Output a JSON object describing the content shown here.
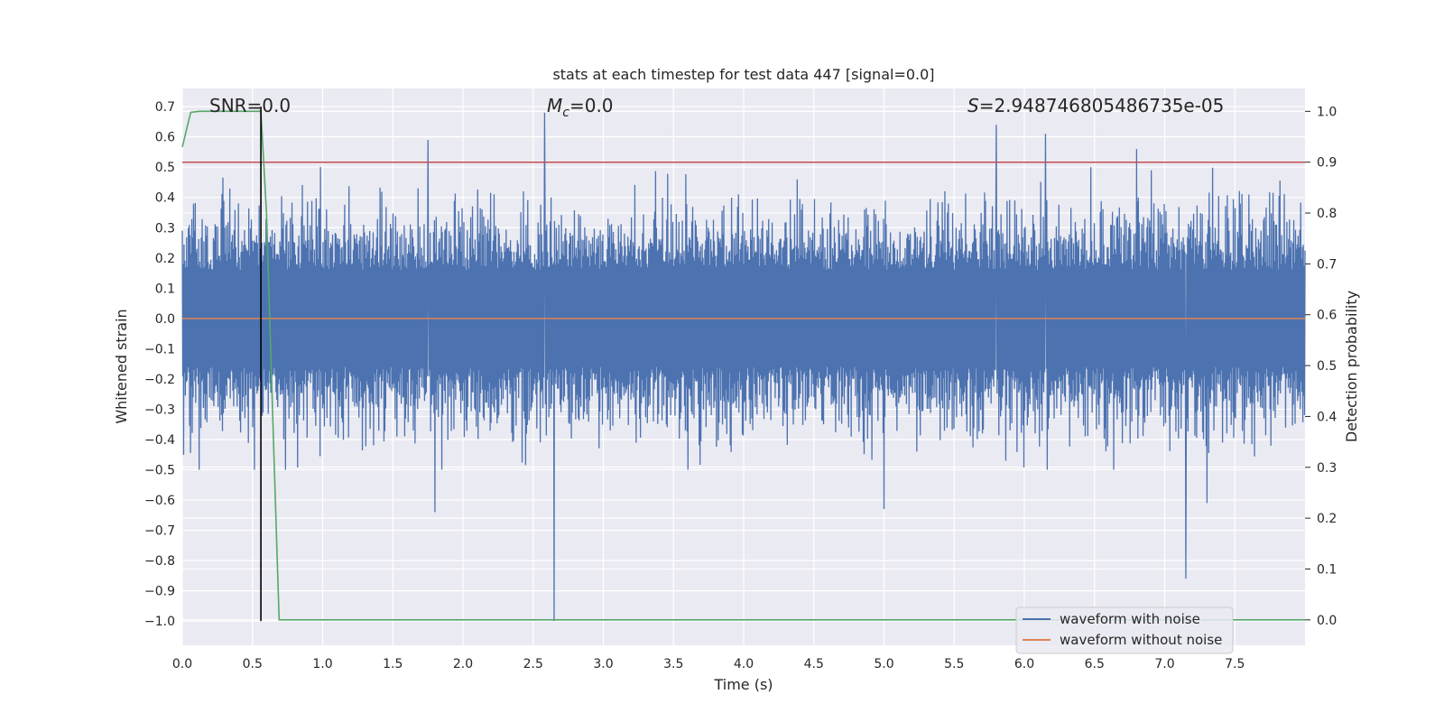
{
  "chart_data": {
    "type": "line",
    "title": "stats at each timestep for test data 447 [signal=0.0]",
    "xlabel": "Time (s)",
    "ylabel_left": "Whitened strain",
    "ylabel_right": "Detection probability",
    "xlim": [
      0.0,
      8.0
    ],
    "ylim_left": [
      -1.08,
      0.76
    ],
    "ylim_right": [
      -0.05,
      1.045
    ],
    "x_ticks": [
      0.0,
      0.5,
      1.0,
      1.5,
      2.0,
      2.5,
      3.0,
      3.5,
      4.0,
      4.5,
      5.0,
      5.5,
      6.0,
      6.5,
      7.0,
      7.5
    ],
    "x_tick_labels": [
      "0.0",
      "0.5",
      "1.0",
      "1.5",
      "2.0",
      "2.5",
      "3.0",
      "3.5",
      "4.0",
      "4.5",
      "5.0",
      "5.5",
      "6.0",
      "6.5",
      "7.0",
      "7.5"
    ],
    "y_left_ticks": [
      0.7,
      0.6,
      0.5,
      0.4,
      0.3,
      0.2,
      0.1,
      0.0,
      -0.1,
      -0.2,
      -0.3,
      -0.4,
      -0.5,
      -0.6,
      -0.7,
      -0.8,
      -0.9,
      -1.0
    ],
    "y_left_tick_labels": [
      "0.7",
      "0.6",
      "0.5",
      "0.4",
      "0.3",
      "0.2",
      "0.1",
      "0.0",
      "−0.1",
      "−0.2",
      "−0.3",
      "−0.4",
      "−0.5",
      "−0.6",
      "−0.7",
      "−0.8",
      "−0.9",
      "−1.0"
    ],
    "y_right_ticks": [
      1.0,
      0.9,
      0.8,
      0.7,
      0.6,
      0.5,
      0.4,
      0.3,
      0.2,
      0.1,
      0.0
    ],
    "y_right_tick_labels": [
      "1.0",
      "0.9",
      "0.8",
      "0.7",
      "0.6",
      "0.5",
      "0.4",
      "0.3",
      "0.2",
      "0.1",
      "0.0"
    ],
    "grid": true,
    "annotations": {
      "snr": "SNR=0.0",
      "mc_symbol": "M",
      "mc_subscript": "c",
      "mc_value": "=0.0",
      "s_symbol": "S",
      "s_value": "=2.948746805486735e-05"
    },
    "legend": {
      "placement": "lower-right",
      "entries": [
        {
          "label": "waveform with noise",
          "color": "#4c72b0"
        },
        {
          "label": "waveform without noise",
          "color": "#dd8452"
        }
      ]
    },
    "noise_waveform": {
      "color": "#4c72b0",
      "x_range": [
        0.0,
        8.0
      ],
      "typical_amplitude": 0.2,
      "peaks": [
        {
          "x": 2.58,
          "y": 0.68
        },
        {
          "x": 5.8,
          "y": 0.64
        },
        {
          "x": 6.15,
          "y": 0.61
        },
        {
          "x": 7.15,
          "y": 0.6
        },
        {
          "x": 6.8,
          "y": 0.56
        },
        {
          "x": 1.75,
          "y": 0.59
        },
        {
          "x": 2.65,
          "y": -1.0
        },
        {
          "x": 7.15,
          "y": -0.86
        },
        {
          "x": 1.8,
          "y": -0.64
        },
        {
          "x": 5.0,
          "y": -0.63
        },
        {
          "x": 7.3,
          "y": -0.61
        }
      ]
    },
    "clean_waveform": {
      "color": "#dd8452",
      "value": 0.0
    },
    "threshold_line": {
      "axis": "right",
      "value": 0.9,
      "color": "#c44e52"
    },
    "marker_line": {
      "x": 0.56,
      "y_range": [
        -1.0,
        0.7
      ],
      "color": "#000000"
    },
    "detection_probability": {
      "axis": "right",
      "color": "#55a868",
      "x": [
        0.0,
        0.06,
        0.12,
        0.2,
        0.3,
        0.4,
        0.5,
        0.56,
        0.6,
        0.65,
        0.69,
        0.72,
        8.0
      ],
      "y": [
        0.93,
        0.998,
        1.0,
        1.0,
        1.0,
        1.0,
        1.0,
        1.0,
        0.8,
        0.35,
        0.0,
        0.0,
        0.0
      ]
    }
  }
}
